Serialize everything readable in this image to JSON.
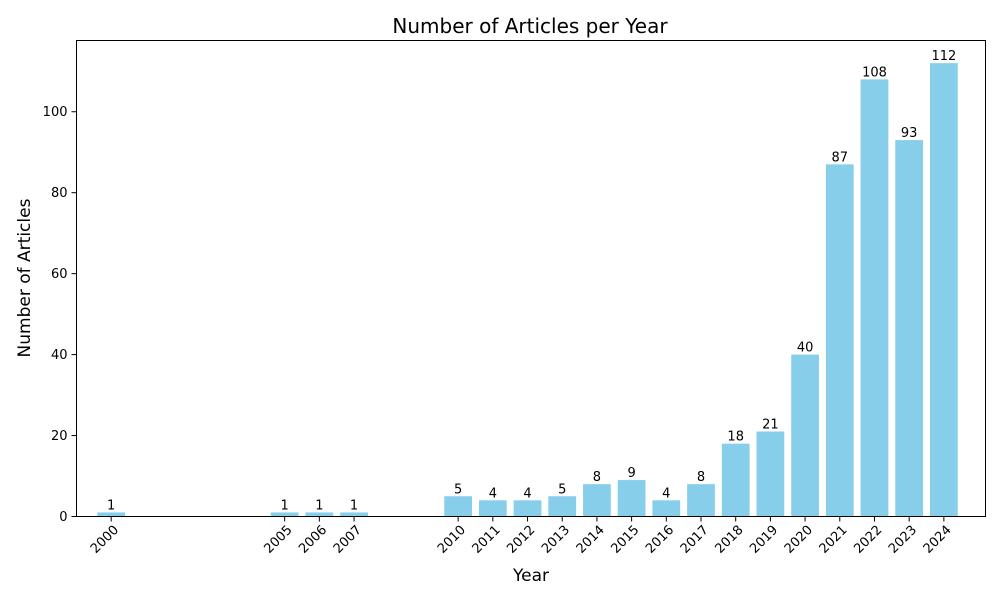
{
  "chart_data": {
    "type": "bar",
    "title": "Number of Articles per Year",
    "xlabel": "Year",
    "ylabel": "Number of Articles",
    "x": [
      2000,
      2005,
      2006,
      2007,
      2010,
      2011,
      2012,
      2013,
      2014,
      2015,
      2016,
      2017,
      2018,
      2019,
      2020,
      2021,
      2022,
      2023,
      2024
    ],
    "categories": [
      "2000",
      "2005",
      "2006",
      "2007",
      "2010",
      "2011",
      "2012",
      "2013",
      "2014",
      "2015",
      "2016",
      "2017",
      "2018",
      "2019",
      "2020",
      "2021",
      "2022",
      "2023",
      "2024"
    ],
    "values": [
      1,
      1,
      1,
      1,
      5,
      4,
      4,
      5,
      8,
      9,
      4,
      8,
      18,
      21,
      40,
      87,
      108,
      93,
      112
    ],
    "value_labels": [
      "1",
      "1",
      "1",
      "1",
      "5",
      "4",
      "4",
      "5",
      "8",
      "9",
      "4",
      "8",
      "18",
      "21",
      "40",
      "87",
      "108",
      "93",
      "112"
    ],
    "xlim": [
      1999,
      2025.2
    ],
    "ylim": [
      0,
      117.6
    ],
    "yticks": [
      0,
      20,
      40,
      60,
      80,
      100
    ],
    "ytick_labels": [
      "0",
      "20",
      "40",
      "60",
      "80",
      "100"
    ],
    "bar_color": "#87ceeb",
    "grid": false,
    "legend": "none"
  }
}
